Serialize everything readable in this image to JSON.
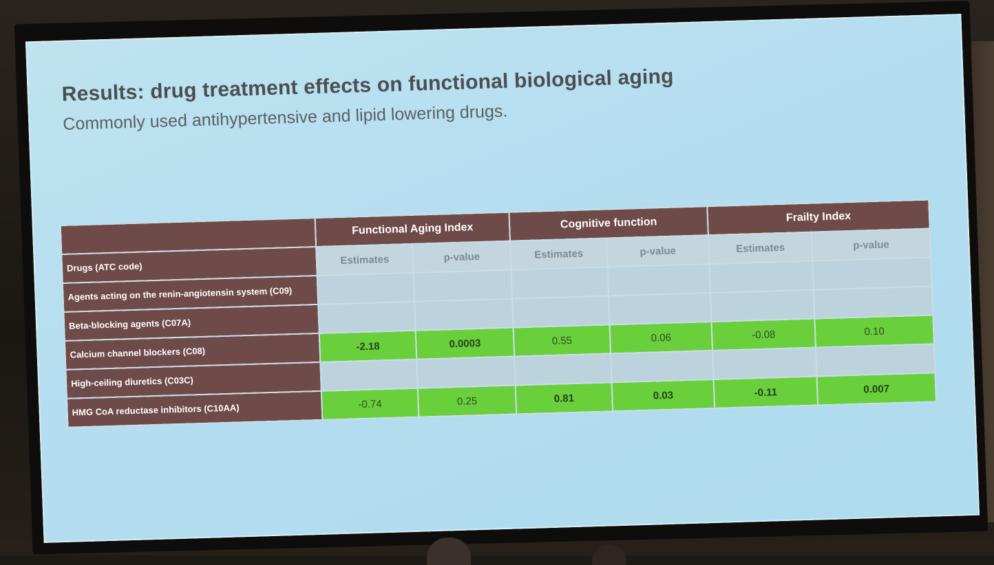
{
  "slide": {
    "title": "Results: drug treatment effects on functional biological aging",
    "subtitle": "Commonly used antihypertensive and lipid lowering drugs."
  },
  "table": {
    "groups": [
      "Functional Aging Index",
      "Cognitive function",
      "Frailty Index"
    ],
    "row_header_label": "Drugs (ATC code)",
    "subheaders": [
      "Estimates",
      "p-value",
      "Estimates",
      "p-value",
      "Estimates",
      "p-value"
    ],
    "rows": [
      {
        "drug": "Agents acting on the renin-angiotensin system (C09)",
        "highlight": false,
        "values": [
          "",
          "",
          "",
          "",
          "",
          ""
        ],
        "bold": [
          false,
          false,
          false,
          false,
          false,
          false
        ]
      },
      {
        "drug": "Beta-blocking agents (C07A)",
        "highlight": false,
        "values": [
          "",
          "",
          "",
          "",
          "",
          ""
        ],
        "bold": [
          false,
          false,
          false,
          false,
          false,
          false
        ]
      },
      {
        "drug": "Calcium channel blockers (C08)",
        "highlight": true,
        "values": [
          "-2.18",
          "0.0003",
          "0.55",
          "0.06",
          "-0.08",
          "0.10"
        ],
        "bold": [
          true,
          true,
          false,
          false,
          false,
          false
        ]
      },
      {
        "drug": "High-ceiling diuretics (C03C)",
        "highlight": false,
        "values": [
          "",
          "",
          "",
          "",
          "",
          ""
        ],
        "bold": [
          false,
          false,
          false,
          false,
          false,
          false
        ]
      },
      {
        "drug": "HMG CoA reductase inhibitors (C10AA)",
        "highlight": true,
        "values": [
          "-0.74",
          "0.25",
          "0.81",
          "0.03",
          "-0.11",
          "0.007"
        ],
        "bold": [
          false,
          false,
          true,
          true,
          true,
          true
        ]
      }
    ]
  },
  "colors": {
    "header_brown": "#6e4a49",
    "highlight_green": "#69cf3b",
    "screen_blue": "#b5def0"
  }
}
